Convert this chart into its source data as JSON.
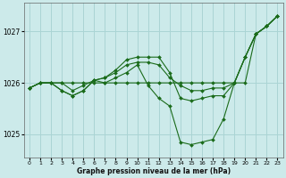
{
  "title": "Graphe pression niveau de la mer (hPa)",
  "bg_color": "#cceaea",
  "grid_color": "#aad4d4",
  "line_color": "#1a6b1a",
  "marker_color": "#1a6b1a",
  "xlim": [
    -0.5,
    23.5
  ],
  "ylim": [
    1024.55,
    1027.55
  ],
  "yticks": [
    1025,
    1026,
    1027
  ],
  "xticks": [
    0,
    1,
    2,
    3,
    4,
    5,
    6,
    7,
    8,
    9,
    10,
    11,
    12,
    13,
    14,
    15,
    16,
    17,
    18,
    19,
    20,
    21,
    22,
    23
  ],
  "series": [
    [
      1025.9,
      1026.0,
      1026.0,
      1026.0,
      1025.85,
      1025.95,
      1026.05,
      1026.1,
      1026.2,
      1026.35,
      1026.4,
      1026.4,
      1026.35,
      1026.1,
      1025.95,
      1025.85,
      1025.85,
      1025.9,
      1025.9,
      1026.0,
      1026.5,
      1026.95,
      1027.1,
      1027.3
    ],
    [
      1025.9,
      1026.0,
      1026.0,
      1026.0,
      1026.0,
      1026.0,
      1026.0,
      1026.0,
      1026.0,
      1026.0,
      1026.0,
      1026.0,
      1026.0,
      1026.0,
      1026.0,
      1026.0,
      1026.0,
      1026.0,
      1026.0,
      1026.0,
      1026.0,
      1026.95,
      1027.1,
      1027.3
    ],
    [
      1025.9,
      1026.0,
      1026.0,
      1025.85,
      1025.75,
      1025.85,
      1026.05,
      1026.1,
      1026.25,
      1026.45,
      1026.5,
      1026.5,
      1026.5,
      1026.2,
      1025.7,
      1025.65,
      1025.7,
      1025.75,
      1025.75,
      1026.0,
      1026.5,
      1026.95,
      1027.1,
      1027.3
    ],
    [
      1025.9,
      1026.0,
      1026.0,
      1025.85,
      1025.75,
      1025.85,
      1026.05,
      1026.0,
      1026.1,
      1026.2,
      1026.35,
      1025.95,
      1025.7,
      1025.55,
      1024.85,
      1024.8,
      1024.85,
      1024.9,
      1025.3,
      1026.0,
      1026.5,
      1026.95,
      1027.1,
      1027.3
    ]
  ]
}
